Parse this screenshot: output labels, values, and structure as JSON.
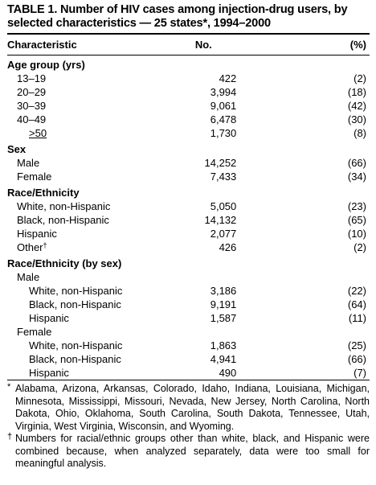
{
  "title": "TABLE 1. Number of HIV cases among injection-drug users, by selected characteristics — 25 states*, 1994–2000",
  "columns": {
    "characteristic": "Characteristic",
    "no": "No.",
    "pct": "(%)"
  },
  "sections": {
    "age": {
      "heading": "Age group (yrs)",
      "rows": [
        {
          "label": "13–19",
          "no": "422",
          "pct": "(2)"
        },
        {
          "label": "20–29",
          "no": "3,994",
          "pct": "(18)"
        },
        {
          "label": "30–39",
          "no": "9,061",
          "pct": "(42)"
        },
        {
          "label": "40–49",
          "no": "6,478",
          "pct": "(30)"
        },
        {
          "label": ">50",
          "no": "1,730",
          "pct": "(8)"
        }
      ]
    },
    "sex": {
      "heading": "Sex",
      "rows": [
        {
          "label": "Male",
          "no": "14,252",
          "pct": "(66)"
        },
        {
          "label": "Female",
          "no": "7,433",
          "pct": "(34)"
        }
      ]
    },
    "race": {
      "heading": "Race/Ethnicity",
      "rows": [
        {
          "label": "White, non-Hispanic",
          "no": "5,050",
          "pct": "(23)"
        },
        {
          "label": "Black, non-Hispanic",
          "no": "14,132",
          "pct": "(65)"
        },
        {
          "label": "Hispanic",
          "no": "2,077",
          "pct": "(10)"
        },
        {
          "label": "Other",
          "sup": "†",
          "no": "426",
          "pct": "(2)"
        }
      ]
    },
    "race_by_sex": {
      "heading": "Race/Ethnicity (by sex)",
      "male": {
        "label": "Male",
        "rows": [
          {
            "label": "White, non-Hispanic",
            "no": "3,186",
            "pct": "(22)"
          },
          {
            "label": "Black, non-Hispanic",
            "no": "9,191",
            "pct": "(64)"
          },
          {
            "label": "Hispanic",
            "no": "1,587",
            "pct": "(11)"
          }
        ]
      },
      "female": {
        "label": "Female",
        "rows": [
          {
            "label": "White, non-Hispanic",
            "no": "1,863",
            "pct": "(25)"
          },
          {
            "label": "Black, non-Hispanic",
            "no": "4,941",
            "pct": "(66)"
          },
          {
            "label": "Hispanic",
            "no": "490",
            "pct": "(7)"
          }
        ]
      }
    }
  },
  "footnotes": [
    {
      "mark": "*",
      "text": "Alabama, Arizona, Arkansas, Colorado, Idaho, Indiana, Louisiana, Michigan, Minnesota, Mississippi, Missouri, Nevada, New Jersey, North Carolina, North Dakota, Ohio, Oklahoma, South Carolina, South Dakota, Tennessee, Utah, Virginia, West Virginia, Wisconsin, and Wyoming."
    },
    {
      "mark": "†",
      "text": "Numbers for racial/ethnic groups other than white, black, and Hispanic were combined because, when analyzed separately, data were too small for meaningful analysis."
    }
  ]
}
